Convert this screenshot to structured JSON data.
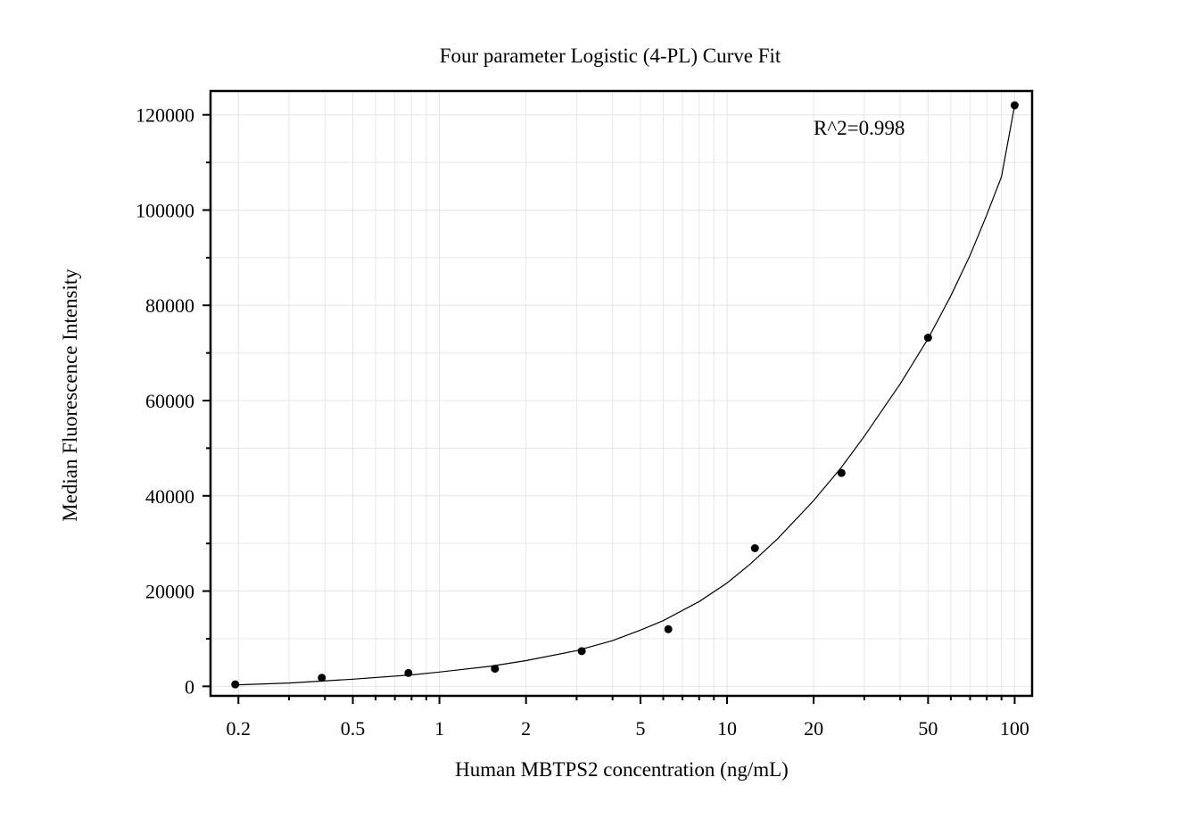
{
  "chart_data": {
    "type": "scatter",
    "title": "Four parameter Logistic (4-PL) Curve Fit",
    "xlabel": "Human MBTPS2 concentration (ng/mL)",
    "ylabel": "Median Fluorescence Intensity",
    "x_scale": "log",
    "xlim": [
      0.16,
      115
    ],
    "ylim": [
      -2000,
      125000
    ],
    "x_ticks": [
      0.2,
      0.5,
      1,
      2,
      5,
      10,
      20,
      50,
      100
    ],
    "x_tick_labels": [
      "0.2",
      "0.5",
      "1",
      "2",
      "5",
      "10",
      "20",
      "50",
      "100"
    ],
    "y_ticks": [
      0,
      20000,
      40000,
      60000,
      80000,
      100000,
      120000
    ],
    "y_tick_labels": [
      "0",
      "20000",
      "40000",
      "60000",
      "80000",
      "100000",
      "120000"
    ],
    "grid": true,
    "annotation": "R^2=0.998",
    "series": [
      {
        "points": [
          {
            "x": 0.195,
            "y": 400
          },
          {
            "x": 0.39,
            "y": 1800
          },
          {
            "x": 0.78,
            "y": 2800
          },
          {
            "x": 1.56,
            "y": 3700
          },
          {
            "x": 3.125,
            "y": 7400
          },
          {
            "x": 6.25,
            "y": 12000
          },
          {
            "x": 12.5,
            "y": 29000
          },
          {
            "x": 25,
            "y": 44800
          },
          {
            "x": 50,
            "y": 73200
          },
          {
            "x": 100,
            "y": 122000
          }
        ]
      }
    ],
    "fit_curve": [
      {
        "x": 0.195,
        "y": 300
      },
      {
        "x": 0.3,
        "y": 700
      },
      {
        "x": 0.5,
        "y": 1500
      },
      {
        "x": 0.8,
        "y": 2400
      },
      {
        "x": 1,
        "y": 3000
      },
      {
        "x": 1.5,
        "y": 4200
      },
      {
        "x": 2,
        "y": 5400
      },
      {
        "x": 3,
        "y": 7500
      },
      {
        "x": 4,
        "y": 9600
      },
      {
        "x": 5,
        "y": 11800
      },
      {
        "x": 6,
        "y": 13800
      },
      {
        "x": 8,
        "y": 17800
      },
      {
        "x": 10,
        "y": 21700
      },
      {
        "x": 12,
        "y": 25600
      },
      {
        "x": 15,
        "y": 31000
      },
      {
        "x": 20,
        "y": 39000
      },
      {
        "x": 25,
        "y": 46000
      },
      {
        "x": 30,
        "y": 52500
      },
      {
        "x": 40,
        "y": 63500
      },
      {
        "x": 50,
        "y": 73000
      },
      {
        "x": 60,
        "y": 82000
      },
      {
        "x": 70,
        "y": 90500
      },
      {
        "x": 80,
        "y": 99000
      },
      {
        "x": 90,
        "y": 107000
      },
      {
        "x": 100,
        "y": 122000
      }
    ],
    "colors": {
      "points": "#000000",
      "curve": "#000000",
      "grid": "#e6e6e6",
      "frame": "#000000"
    }
  }
}
